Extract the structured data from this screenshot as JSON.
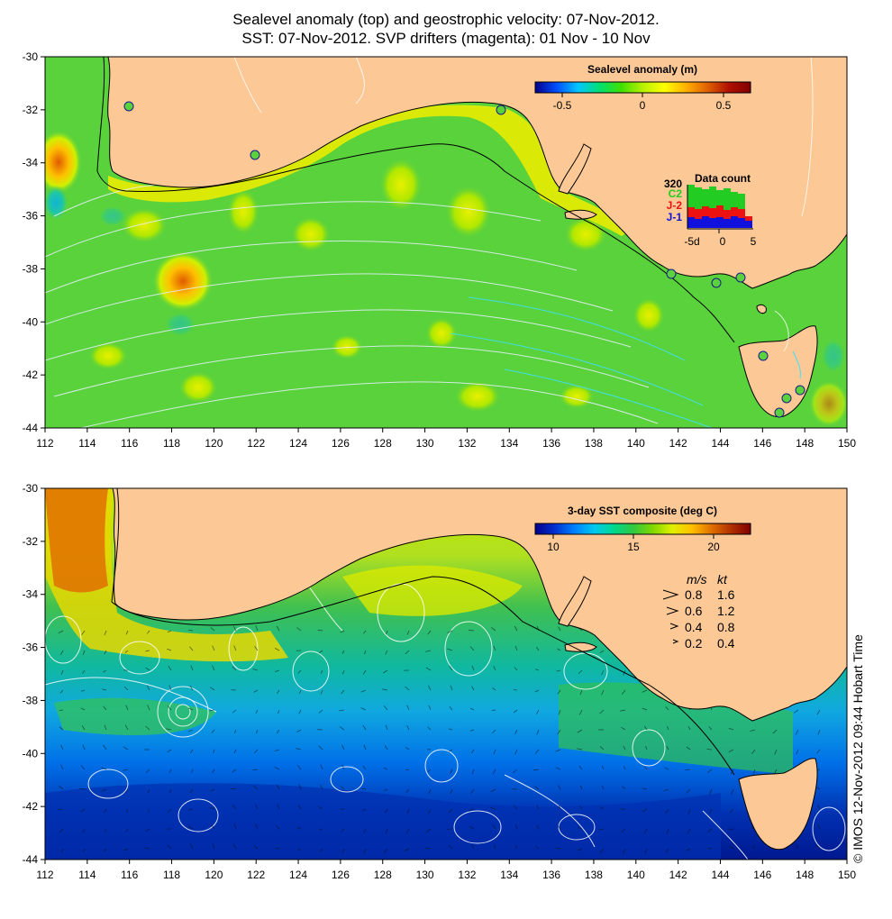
{
  "title": {
    "line1": "Sealevel anomaly (top) and geostrophic velocity: 07-Nov-2012.",
    "line2": "SST: 07-Nov-2012. SVP drifters (magenta): 01 Nov - 10 Nov"
  },
  "axes": {
    "lon_ticks": [
      "112",
      "114",
      "116",
      "118",
      "120",
      "122",
      "124",
      "126",
      "128",
      "130",
      "132",
      "134",
      "136",
      "138",
      "140",
      "142",
      "144",
      "146",
      "148",
      "150"
    ],
    "lat_ticks": [
      "-30",
      "-32",
      "-34",
      "-36",
      "-38",
      "-40",
      "-42",
      "-44"
    ]
  },
  "top_panel": {
    "colorbar": {
      "title": "Sealevel anomaly (m)",
      "tick_labels": [
        "-0.5",
        "0",
        "0.5"
      ],
      "stops": [
        "#00008b",
        "#0050ff",
        "#00c8ff",
        "#00e070",
        "#40e000",
        "#b8f000",
        "#ffff00",
        "#ffb000",
        "#e06000",
        "#b01000",
        "#800000"
      ]
    },
    "data_count": {
      "title": "Data count",
      "max_label": "320",
      "series": [
        "C2",
        "J-2",
        "J-1"
      ],
      "series_colors": [
        "#22cc22",
        "#ee1111",
        "#1111dd"
      ],
      "x_labels": [
        "-5d",
        "0",
        "5"
      ]
    }
  },
  "bottom_panel": {
    "colorbar": {
      "title": "3-day SST composite (deg C)",
      "tick_labels": [
        "10",
        "15",
        "20"
      ],
      "stops": [
        "#00008b",
        "#0030d0",
        "#0080ff",
        "#00c8f0",
        "#00d890",
        "#30c840",
        "#80d800",
        "#e0f000",
        "#ffc000",
        "#e07000",
        "#b03000",
        "#800000"
      ]
    },
    "velocity_legend": {
      "header_ms": "m/s",
      "header_kt": "kt",
      "rows": [
        {
          "ms": "0.8",
          "kt": "1.6"
        },
        {
          "ms": "0.6",
          "kt": "1.2"
        },
        {
          "ms": "0.4",
          "kt": "0.8"
        },
        {
          "ms": "0.2",
          "kt": "0.4"
        }
      ]
    }
  },
  "credit": "© IMOS 12-Nov-2012 09:44 Hobart Time",
  "colors": {
    "land": "#fbc896",
    "ocean_green": "#5ad23c",
    "coast": "#000000",
    "contour": "#e8f0ff"
  }
}
